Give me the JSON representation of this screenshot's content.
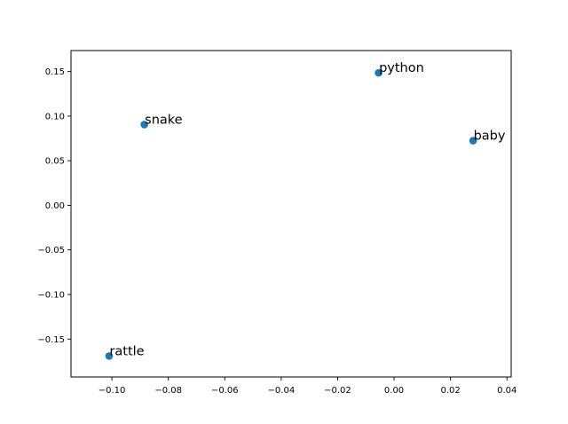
{
  "chart_data": {
    "type": "scatter",
    "title": "",
    "xlabel": "",
    "ylabel": "",
    "xlim": [
      -0.1145,
      0.0415
    ],
    "ylim": [
      -0.1925,
      0.1735
    ],
    "grid": false,
    "marker_color": "#1f77b4",
    "points": [
      {
        "label": "python",
        "x": -0.0055,
        "y": 0.1485
      },
      {
        "label": "snake",
        "x": -0.0885,
        "y": 0.0905
      },
      {
        "label": "baby",
        "x": 0.028,
        "y": 0.0725
      },
      {
        "label": "rattle",
        "x": -0.101,
        "y": -0.169
      }
    ],
    "x_ticks": [
      {
        "value": -0.1,
        "label": "−0.10"
      },
      {
        "value": -0.08,
        "label": "−0.08"
      },
      {
        "value": -0.06,
        "label": "−0.06"
      },
      {
        "value": -0.04,
        "label": "−0.04"
      },
      {
        "value": -0.02,
        "label": "−0.02"
      },
      {
        "value": 0.0,
        "label": "0.00"
      },
      {
        "value": 0.02,
        "label": "0.02"
      },
      {
        "value": 0.04,
        "label": "0.04"
      }
    ],
    "y_ticks": [
      {
        "value": 0.15,
        "label": "0.15"
      },
      {
        "value": 0.1,
        "label": "0.10"
      },
      {
        "value": 0.05,
        "label": "0.05"
      },
      {
        "value": 0.0,
        "label": "0.00"
      },
      {
        "value": -0.05,
        "label": "−0.05"
      },
      {
        "value": -0.1,
        "label": "−0.10"
      },
      {
        "value": -0.15,
        "label": "−0.15"
      }
    ]
  }
}
